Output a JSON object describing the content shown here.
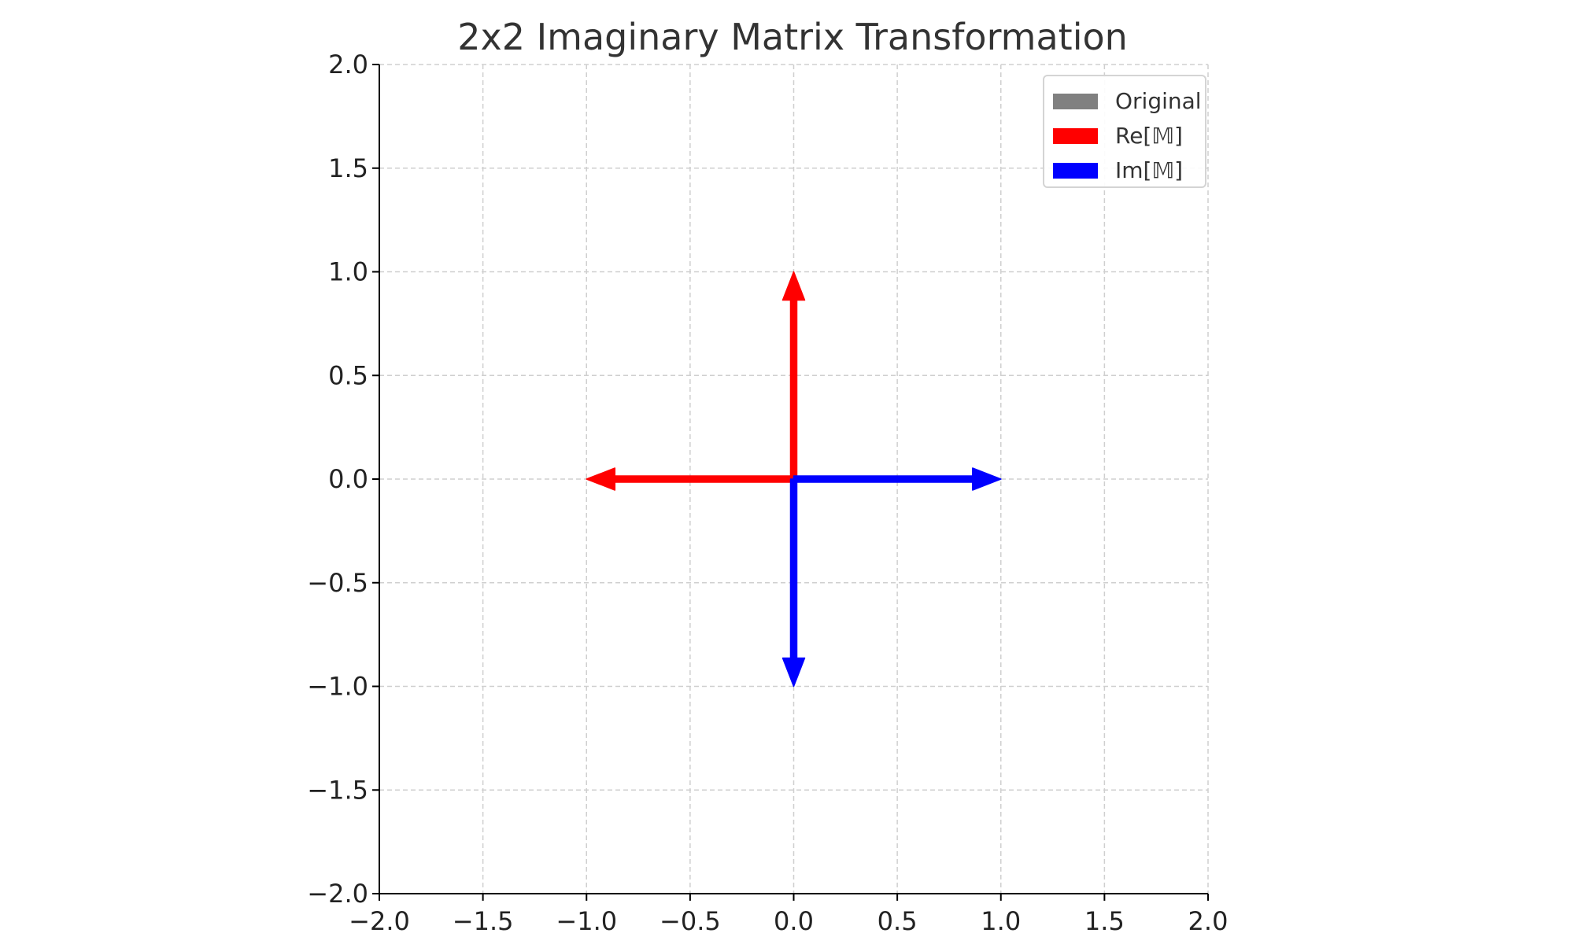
{
  "chart_data": {
    "type": "quiver",
    "title": "2x2 Imaginary Matrix Transformation",
    "xlabel": "",
    "ylabel": "",
    "xlim": [
      -2.0,
      2.0
    ],
    "ylim": [
      -2.0,
      2.0
    ],
    "xticks": [
      -2.0,
      -1.5,
      -1.0,
      -0.5,
      0.0,
      0.5,
      1.0,
      1.5,
      2.0
    ],
    "yticks": [
      -2.0,
      -1.5,
      -1.0,
      -0.5,
      0.0,
      0.5,
      1.0,
      1.5,
      2.0
    ],
    "xtick_labels": [
      "−2.0",
      "−1.5",
      "−1.0",
      "−0.5",
      "0.0",
      "0.5",
      "1.0",
      "1.5",
      "2.0"
    ],
    "ytick_labels": [
      "−2.0",
      "−1.5",
      "−1.0",
      "−0.5",
      "0.0",
      "0.5",
      "1.0",
      "1.5",
      "2.0"
    ],
    "grid": true,
    "legend_position": "top-right",
    "series": [
      {
        "name": "Original",
        "color": "#808080",
        "vectors": []
      },
      {
        "name": "Re[𝕄]",
        "color": "#ff0000",
        "vectors": [
          {
            "x0": 0,
            "y0": 0,
            "dx": -1,
            "dy": 0
          },
          {
            "x0": 0,
            "y0": 0,
            "dx": 0,
            "dy": 1
          }
        ]
      },
      {
        "name": "Im[𝕄]",
        "color": "#0000ff",
        "vectors": [
          {
            "x0": 0,
            "y0": 0,
            "dx": 1,
            "dy": 0
          },
          {
            "x0": 0,
            "y0": 0,
            "dx": 0,
            "dy": -1
          }
        ]
      }
    ]
  }
}
